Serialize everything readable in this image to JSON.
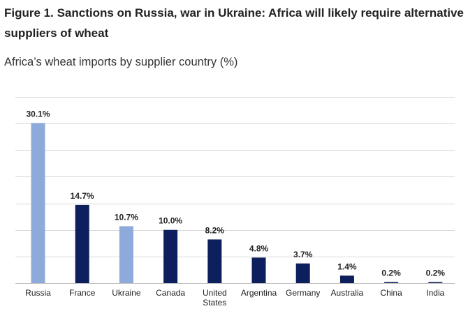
{
  "figure": {
    "title": "Figure 1. Sanctions on Russia, war in Ukraine: Africa will likely require alternative suppliers of wheat",
    "subtitle": "Africa’s wheat imports by supplier country (%)"
  },
  "chart_data": {
    "type": "bar",
    "title": "Figure 1. Sanctions on Russia, war in Ukraine: Africa will likely require alternative suppliers of wheat",
    "subtitle": "Africa’s wheat imports by supplier country (%)",
    "xlabel": "",
    "ylabel": "",
    "unit": "%",
    "categories": [
      "Russia",
      "France",
      "Ukraine",
      "Canada",
      "United States",
      "Argentina",
      "Germany",
      "Australia",
      "China",
      "India"
    ],
    "values": [
      30.1,
      14.7,
      10.7,
      10.0,
      8.2,
      4.8,
      3.7,
      1.4,
      0.2,
      0.2
    ],
    "data_labels": [
      "30.1%",
      "14.7%",
      "10.7%",
      "10.0%",
      "8.2%",
      "4.8%",
      "3.7%",
      "1.4%",
      "0.2%",
      "0.2%"
    ],
    "bar_colors": [
      "#8eaadb",
      "#0d1f5c",
      "#8eaadb",
      "#0d1f5c",
      "#0d1f5c",
      "#0d1f5c",
      "#0d1f5c",
      "#0d1f5c",
      "#0d1f5c",
      "#0d1f5c"
    ],
    "ylim": [
      0,
      35
    ],
    "gridline_step": 5,
    "grid": true,
    "axis_tick_labels_shown": false,
    "legend": "none",
    "colors": {
      "highlight": "#8eaadb",
      "default": "#0d1f5c",
      "gridline": "#d9d9d9",
      "axis": "#bfbfbf",
      "text": "#222222"
    }
  }
}
